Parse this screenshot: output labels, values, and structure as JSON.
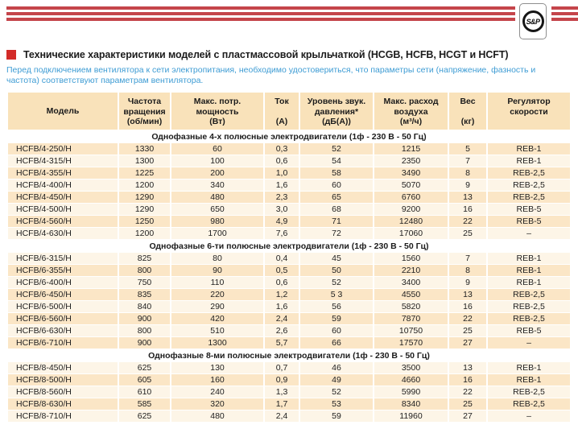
{
  "logo": {
    "text": "S&P"
  },
  "title": {
    "text": "Технические характеристики моделей с пластмассовой крыльчаткой (HCGB, HCFB, HCGT и HCFT)"
  },
  "note": "Перед подключением вентилятора к сети электропитания, необходимо удостовериться, что параметры сети (напряжение, фазность и частота) соответствуют параметрам вентилятора.",
  "colors": {
    "stripe_red": "#c5454b",
    "accent_red": "#d32b28",
    "note_blue": "#3e9cd4",
    "header_bg": "#f9e2ba",
    "row_shaded": "#fbe6c6",
    "row_light": "#fdf5e7"
  },
  "table": {
    "headers": [
      "Модель",
      "Частота\nвращения\n(об/мин)",
      "Макс. потр.\nмощность\n(Вт)",
      "Ток\n\n(А)",
      "Уровень звук.\nдавления*\n(дБ(А))",
      "Макс. расход\nвоздуха\n(м³/ч)",
      "Вес\n\n(кг)",
      "Регулятор\nскорости"
    ],
    "sections": [
      {
        "title": "Однофазные 4-х полюсные электродвигатели (1ф - 230 В - 50 Гц)",
        "rows": [
          [
            "HCFB/4-250/H",
            "1330",
            "60",
            "0,3",
            "52",
            "1215",
            "5",
            "REB-1"
          ],
          [
            "HCFB/4-315/H",
            "1300",
            "100",
            "0,6",
            "54",
            "2350",
            "7",
            "REB-1"
          ],
          [
            "HCFB/4-355/H",
            "1225",
            "200",
            "1,0",
            "58",
            "3490",
            "8",
            "REB-2,5"
          ],
          [
            "HCFB/4-400/H",
            "1200",
            "340",
            "1,6",
            "60",
            "5070",
            "9",
            "REB-2,5"
          ],
          [
            "HCFB/4-450/H",
            "1290",
            "480",
            "2,3",
            "65",
            "6760",
            "13",
            "REB-2,5"
          ],
          [
            "HCFB/4-500/H",
            "1290",
            "650",
            "3,0",
            "68",
            "9200",
            "16",
            "REB-5"
          ],
          [
            "HCFB/4-560/H",
            "1250",
            "980",
            "4,9",
            "71",
            "12480",
            "22",
            "REB-5"
          ],
          [
            "HCFB/4-630/H",
            "1200",
            "1700",
            "7,6",
            "72",
            "17060",
            "25",
            "–"
          ]
        ]
      },
      {
        "title": "Однофазные 6-ти полюсные электродвигатели (1ф - 230 В - 50 Гц)",
        "rows": [
          [
            "HCFB/6-315/H",
            "825",
            "80",
            "0,4",
            "45",
            "1560",
            "7",
            "REB-1"
          ],
          [
            "HCFB/6-355/H",
            "800",
            "90",
            "0,5",
            "50",
            "2210",
            "8",
            "REB-1"
          ],
          [
            "HCFB/6-400/H",
            "750",
            "110",
            "0,6",
            "52",
            "3400",
            "9",
            "REB-1"
          ],
          [
            "HCFB/6-450/H",
            "835",
            "220",
            "1,2",
            "5 3",
            "4550",
            "13",
            "REB-2,5"
          ],
          [
            "HCFB/6-500/H",
            "840",
            "290",
            "1,6",
            "56",
            "5820",
            "16",
            "REB-2,5"
          ],
          [
            "HCFB/6-560/H",
            "900",
            "420",
            "2,4",
            "59",
            "7870",
            "22",
            "REB-2,5"
          ],
          [
            "HCFB/6-630/H",
            "800",
            "510",
            "2,6",
            "60",
            "10750",
            "25",
            "REB-5"
          ],
          [
            "HCFB/6-710/H",
            "900",
            "1300",
            "5,7",
            "66",
            "17570",
            "27",
            "–"
          ]
        ]
      },
      {
        "title": "Однофазные 8-ми полюсные электродвигатели (1ф - 230 В - 50 Гц)",
        "rows": [
          [
            "HCFB/8-450/H",
            "625",
            "130",
            "0,7",
            "46",
            "3500",
            "13",
            "REB-1"
          ],
          [
            "HCFB/8-500/H",
            "605",
            "160",
            "0,9",
            "49",
            "4660",
            "16",
            "REB-1"
          ],
          [
            "HCFB/8-560/H",
            "610",
            "240",
            "1,3",
            "52",
            "5990",
            "22",
            "REB-2,5"
          ],
          [
            "HCFB/8-630/H",
            "585",
            "320",
            "1,7",
            "53",
            "8340",
            "25",
            "REB-2,5"
          ],
          [
            "HCFB/8-710/H",
            "625",
            "480",
            "2,4",
            "59",
            "11960",
            "27",
            "–"
          ]
        ]
      }
    ]
  }
}
